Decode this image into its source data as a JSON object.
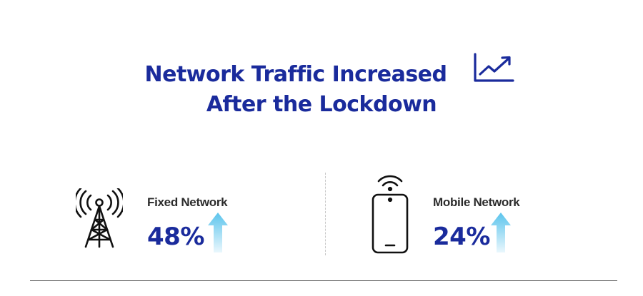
{
  "title": {
    "line1": "Network Traffic Increased",
    "line2": "After the Lockdown",
    "icon": "trend-up-chart-icon"
  },
  "stats": [
    {
      "label": "Fixed Network",
      "value": "48%",
      "icon": "cell-tower-icon",
      "trend_icon": "arrow-up-icon"
    },
    {
      "label": "Mobile Network",
      "value": "24%",
      "icon": "smartphone-wifi-icon",
      "trend_icon": "arrow-up-icon"
    }
  ],
  "colors": {
    "title": "#1a2b9c",
    "value": "#1a2b9c",
    "label": "#2b2b2b",
    "arrow_top": "#5bc4ec",
    "arrow_bottom": "#eaf7fd"
  }
}
